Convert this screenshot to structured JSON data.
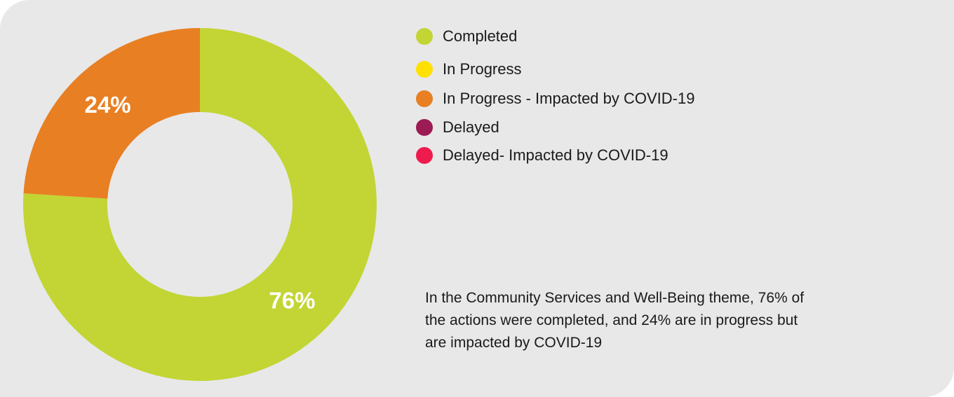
{
  "chart_data": {
    "type": "donut",
    "categories": [
      "Completed",
      "In Progress",
      "In Progress - Impacted by COVID-19",
      "Delayed",
      "Delayed- Impacted by COVID-19"
    ],
    "values": [
      76,
      0,
      24,
      0,
      0
    ],
    "value_labels": [
      "76%",
      null,
      "24%",
      null,
      null
    ],
    "colors": [
      "#c2d534",
      "#ffe000",
      "#e87f22",
      "#9b1b54",
      "#ee1c4e"
    ],
    "annotation": "In the Community Services and Well-Being theme, 76% of the actions were completed, and 24% are in progress but are impacted by COVID-19"
  }
}
